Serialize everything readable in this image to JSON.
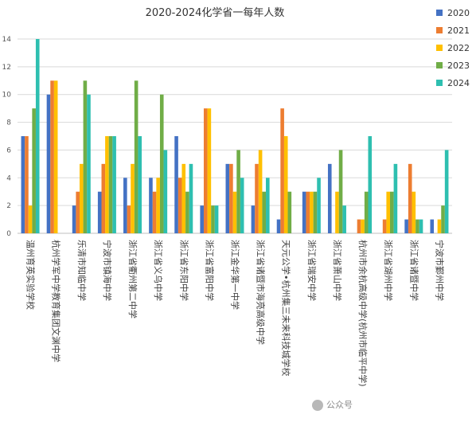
{
  "chart_data": {
    "type": "bar",
    "title": "2020-2024化学省一每年人数",
    "xlabel": "",
    "ylabel": "",
    "ylim": [
      0,
      14
    ],
    "yticks": [
      0,
      2,
      4,
      6,
      8,
      10,
      12,
      14
    ],
    "grid": true,
    "legend_position": "top-right",
    "categories": [
      "温州育英实验学校",
      "杭州学军中学教育集团文渊中学",
      "乐清市知临中学",
      "宁波市镇海中学",
      "浙江省衢州第二中学",
      "浙江省义乌中学",
      "浙江省东阳中学",
      "浙江省富阳中学",
      "浙江金华第一中学",
      "浙江省诸暨市海亮高级中学",
      "天元公学•杭州集三未来科技城学校",
      "浙江省瑞安中学",
      "浙江省萧山中学",
      "杭州市余杭高级中学(杭州市临平中学)",
      "浙江省湖州中学",
      "浙江省诸暨中学",
      "宁波市鄞州中学"
    ],
    "series": [
      {
        "name": "2020",
        "color": "#4472c4",
        "values": [
          7,
          10,
          2,
          3,
          4,
          4,
          7,
          2,
          5,
          2,
          1,
          3,
          5,
          0,
          0,
          1,
          1
        ]
      },
      {
        "name": "2021",
        "color": "#ed7d31",
        "values": [
          7,
          11,
          3,
          5,
          2,
          3,
          4,
          9,
          5,
          5,
          9,
          3,
          0,
          1,
          1,
          5,
          0
        ]
      },
      {
        "name": "2022",
        "color": "#ffc000",
        "values": [
          2,
          11,
          5,
          7,
          5,
          4,
          5,
          9,
          3,
          6,
          7,
          3,
          3,
          1,
          3,
          3,
          1
        ]
      },
      {
        "name": "2023",
        "color": "#70ad47",
        "values": [
          9,
          0,
          11,
          7,
          11,
          10,
          3,
          2,
          6,
          3,
          3,
          3,
          6,
          3,
          3,
          1,
          2
        ]
      },
      {
        "name": "2024",
        "color": "#2ebfb0",
        "values": [
          14,
          0,
          10,
          7,
          7,
          6,
          5,
          2,
          4,
          4,
          0,
          4,
          2,
          7,
          5,
          1,
          6
        ]
      }
    ]
  },
  "watermark": {
    "text": "公众号"
  }
}
